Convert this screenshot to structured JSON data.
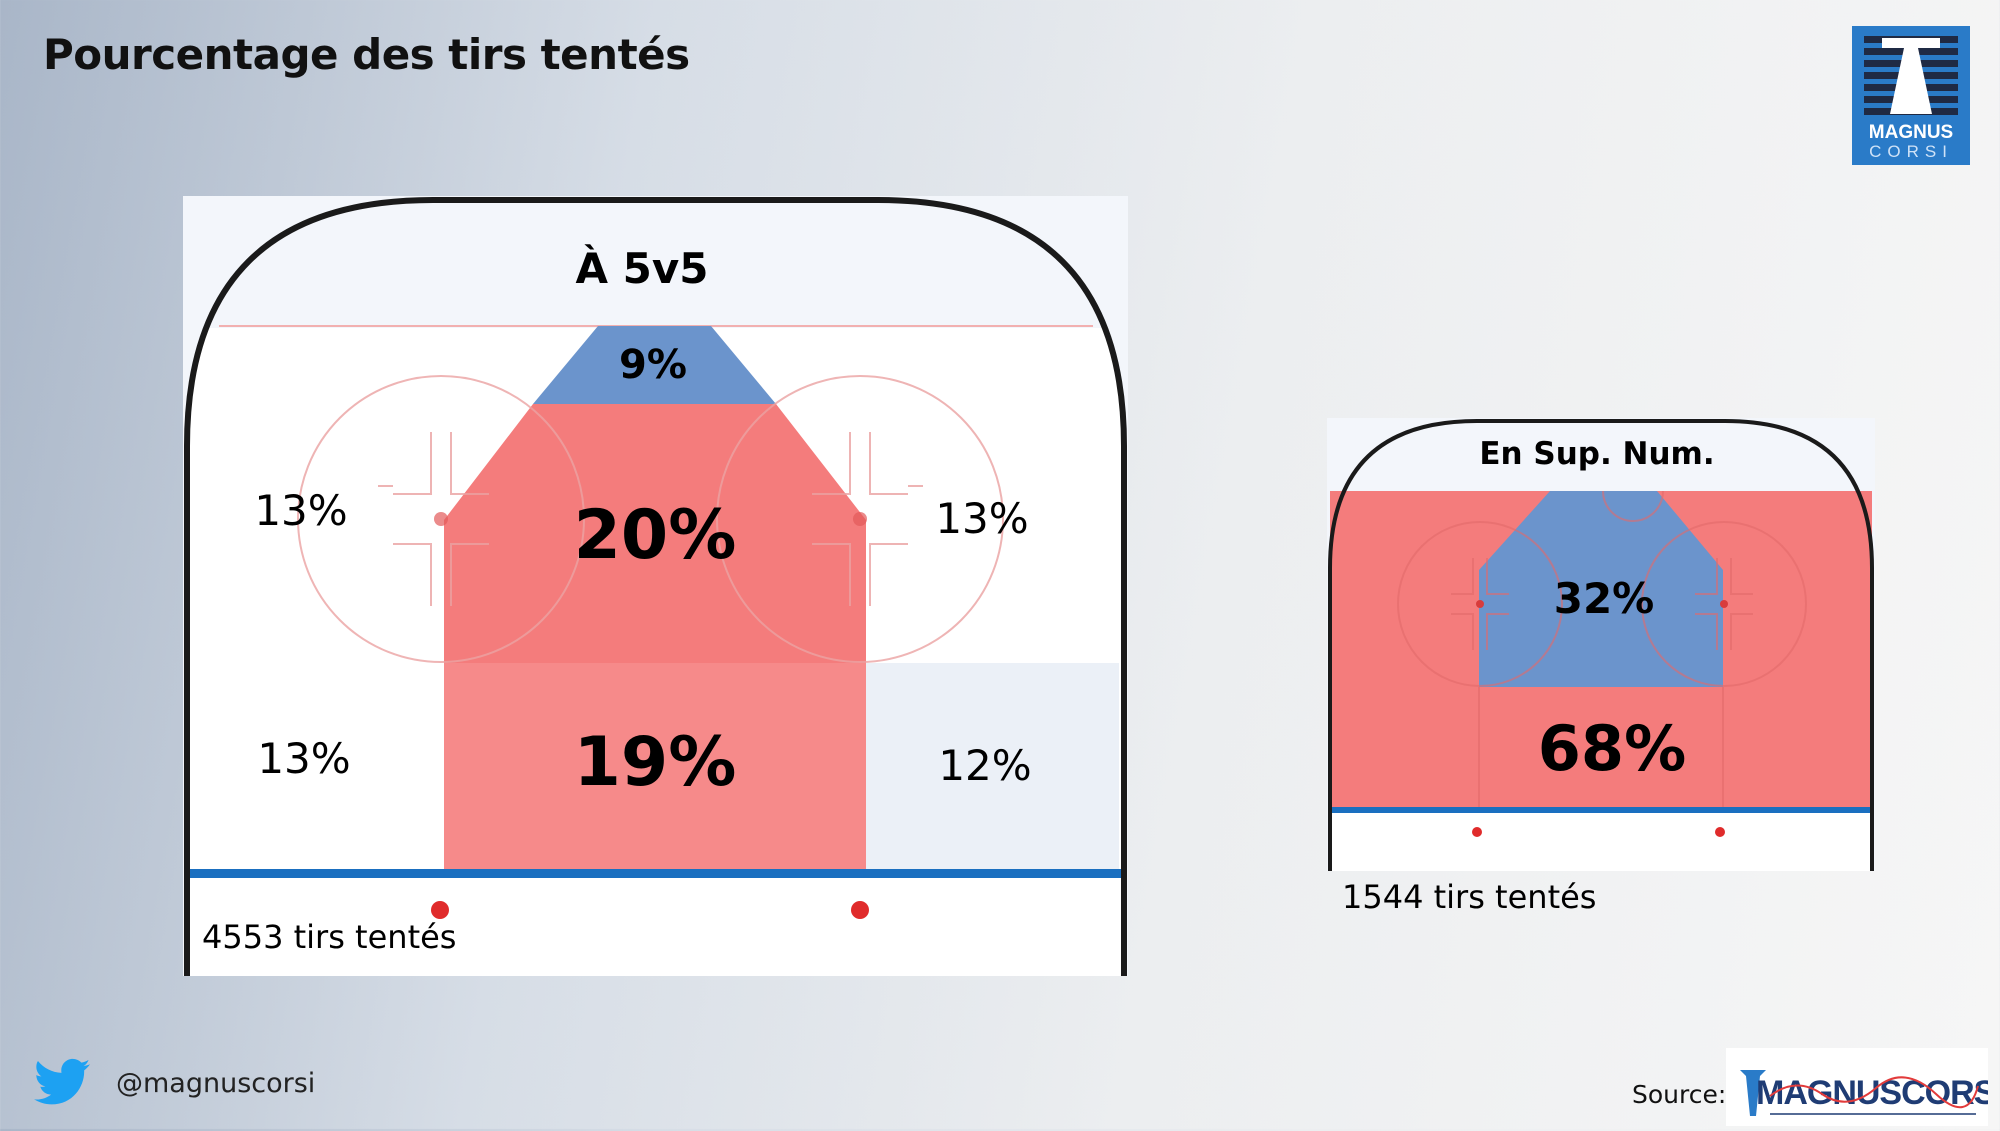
{
  "title": "Pourcentage des tirs tentés",
  "logo": {
    "line1": "MAGNUS",
    "line2": "CORSI"
  },
  "panel_5v5": {
    "heading": "À 5v5",
    "zones": {
      "top_center": "9%",
      "slot": "20%",
      "left_circle": "13%",
      "right_circle": "13%",
      "left_point": "13%",
      "center_point": "19%",
      "right_point": "12%"
    },
    "shots_label": "4553 tirs tentés"
  },
  "panel_pp": {
    "heading": "En Sup. Num.",
    "zones": {
      "inner": "32%",
      "outer": "68%"
    },
    "shots_label": "1544 tirs tentés"
  },
  "footer": {
    "handle": "@magnuscorsi",
    "source_label": "Source:",
    "source_logo": "MAGNUSCORSI"
  },
  "icons": {
    "twitter": "twitter-bird-icon"
  },
  "colors": {
    "red_zone": "#f47c7c",
    "blue_zone": "#5b8fd0",
    "blue_line": "#1a6fc0",
    "logo_blue": "#2a7bc8"
  }
}
